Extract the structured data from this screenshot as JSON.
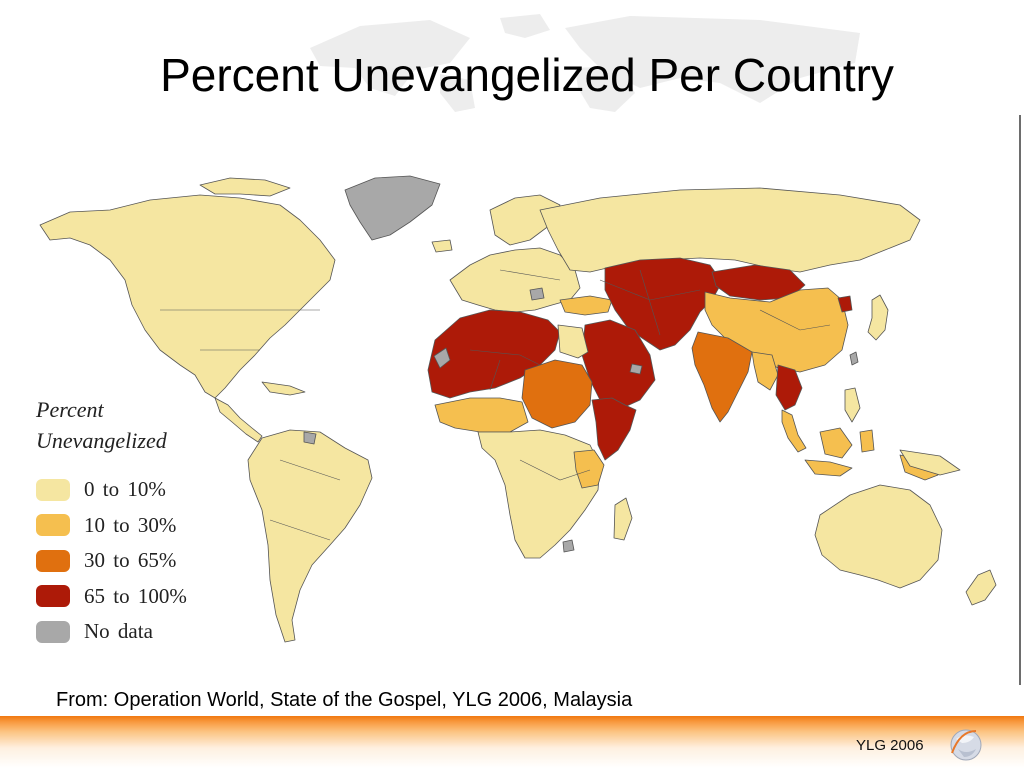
{
  "title": "Percent Unevangelized Per Country",
  "legend": {
    "title": "Percent Unevangelized",
    "items": [
      {
        "label": "0 to 10%",
        "color": "#f5e6a1"
      },
      {
        "label": "10 to 30%",
        "color": "#f5bf4f"
      },
      {
        "label": "30 to 65%",
        "color": "#e0700f"
      },
      {
        "label": "65 to 100%",
        "color": "#ad1a08"
      },
      {
        "label": "No data",
        "color": "#a8a8a8"
      }
    ]
  },
  "source": "From:  Operation World, State of the Gospel, YLG 2006, Malaysia",
  "footer": {
    "label": "YLG 2006",
    "accent": "#f0780f"
  },
  "colors": {
    "border": "#555555",
    "background": "#ffffff"
  }
}
